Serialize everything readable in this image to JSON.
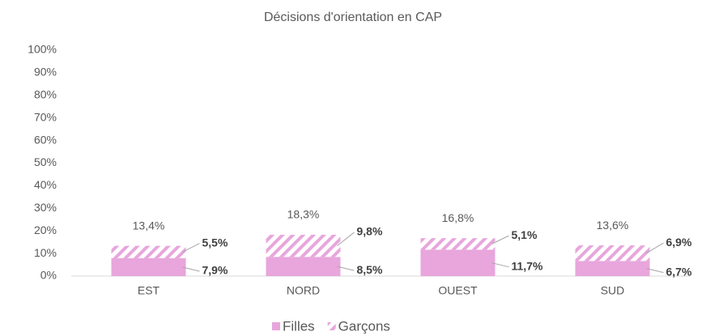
{
  "chart_data": {
    "type": "stacked-bar",
    "title": "Décisions d'orientation en CAP",
    "categories": [
      "EST",
      "NORD",
      "OUEST",
      "SUD"
    ],
    "series": [
      {
        "name": "Filles",
        "color": "#e8a6dc",
        "pattern": "solid",
        "values": [
          7.9,
          8.5,
          11.7,
          6.7
        ],
        "value_labels": [
          "7,9%",
          "8,5%",
          "11,7%",
          "6,7%"
        ]
      },
      {
        "name": "Garçons",
        "color": "#e8a6dc",
        "pattern": "hatch",
        "values": [
          5.5,
          9.8,
          5.1,
          6.9
        ],
        "value_labels": [
          "5,5%",
          "9,8%",
          "5,1%",
          "6,9%"
        ]
      }
    ],
    "totals": {
      "values": [
        13.4,
        18.3,
        16.8,
        13.6
      ],
      "value_labels": [
        "13,4%",
        "18,3%",
        "16,8%",
        "13,6%"
      ]
    },
    "ylim": [
      0,
      100
    ],
    "yticks": [
      {
        "value": 0,
        "label": "0%"
      },
      {
        "value": 10,
        "label": "10%"
      },
      {
        "value": 20,
        "label": "20%"
      },
      {
        "value": 30,
        "label": "30%"
      },
      {
        "value": 40,
        "label": "40%"
      },
      {
        "value": 50,
        "label": "50%"
      },
      {
        "value": 60,
        "label": "60%"
      },
      {
        "value": 70,
        "label": "70%"
      },
      {
        "value": 80,
        "label": "80%"
      },
      {
        "value": 90,
        "label": "90%"
      },
      {
        "value": 100,
        "label": "100%"
      }
    ],
    "legend": "bottom"
  }
}
